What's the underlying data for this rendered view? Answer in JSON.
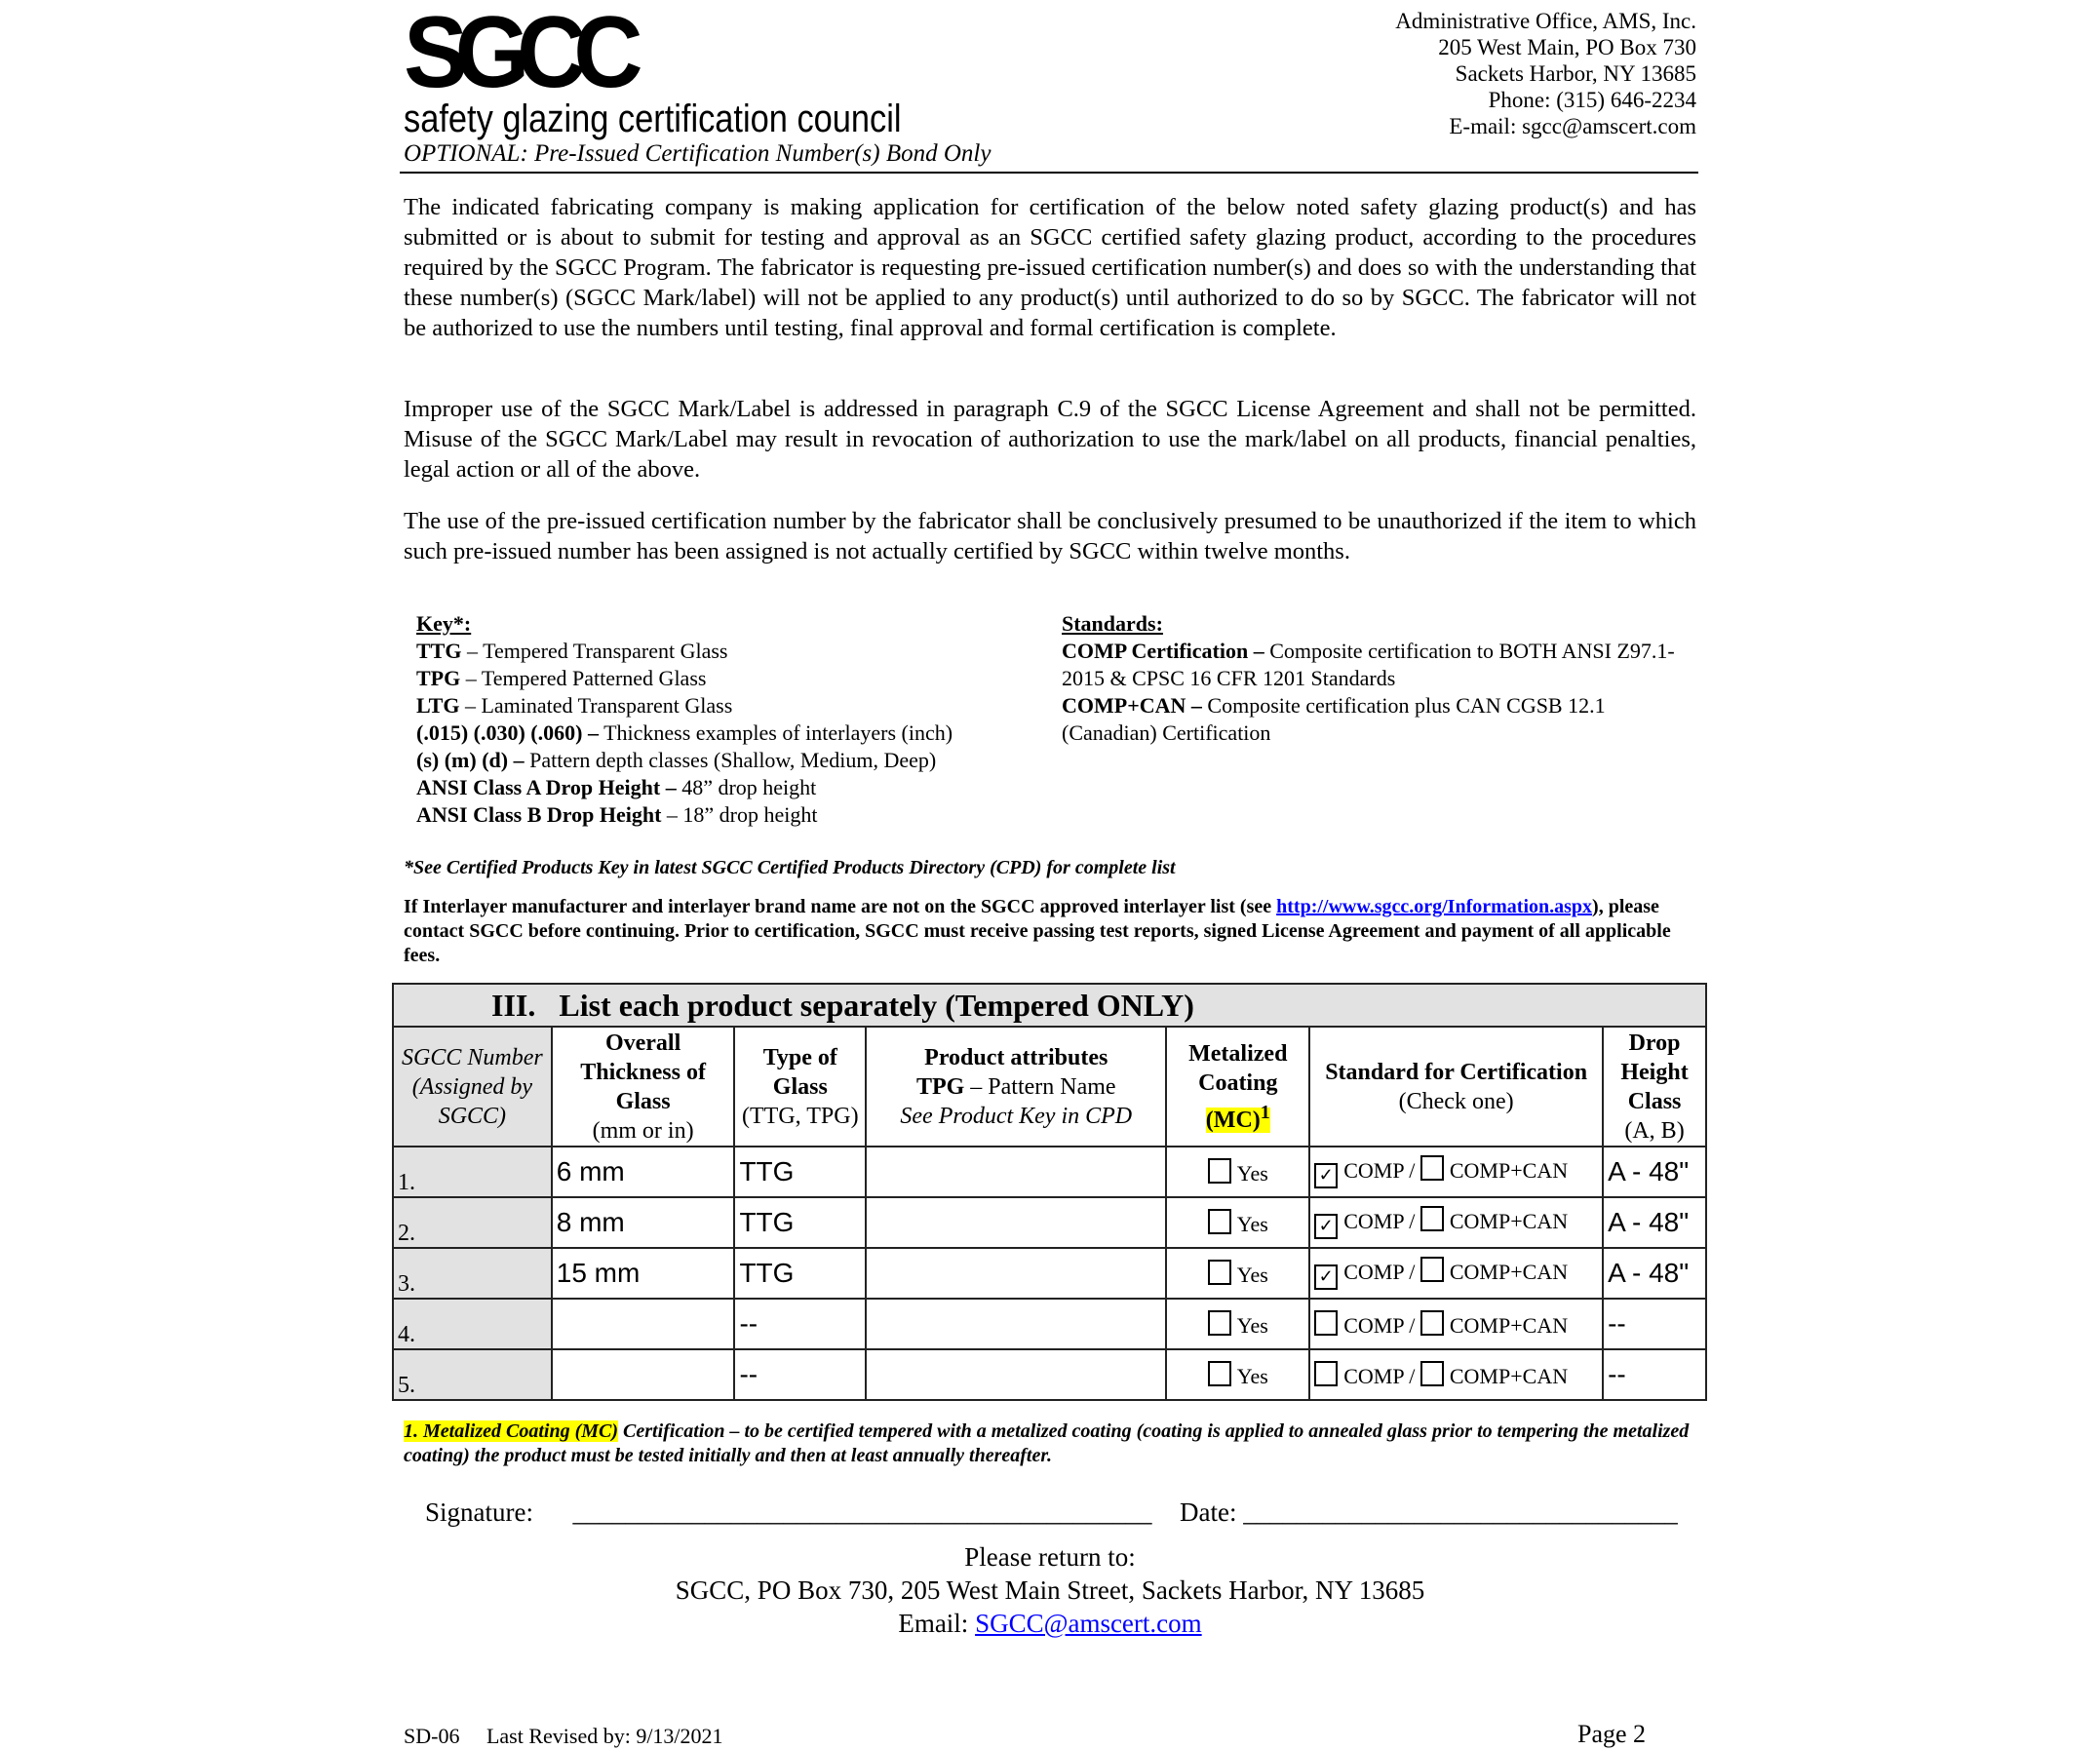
{
  "header": {
    "logo_mark": "SGCC",
    "logo_name": "safety glazing certification council",
    "subtitle": "OPTIONAL: Pre-Issued Certification Number(s) Bond Only",
    "address": [
      "Administrative Office, AMS, Inc.",
      "205 West Main, PO Box 730",
      "Sackets Harbor, NY 13685",
      "Phone: (315) 646-2234",
      "E-mail: sgcc@amscert.com"
    ]
  },
  "paragraphs": [
    "The indicated fabricating company is making application for certification of the below noted safety glazing product(s) and has submitted or is about to submit for testing and approval as an SGCC certified safety glazing product, according to the procedures required by the SGCC Program. The fabricator is requesting pre-issued certification number(s) and does so with the understanding that these number(s) (SGCC Mark/label) will not be applied to any product(s) until authorized to do so by SGCC. The fabricator will not be authorized to use the numbers until testing, final approval and formal certification is complete.",
    "Improper use of the SGCC Mark/Label is addressed in paragraph C.9 of the SGCC License Agreement and shall not be permitted. Misuse of the SGCC Mark/Label may result in revocation of authorization to use the mark/label on all products, financial penalties, legal action or all of the above.",
    "The use of the pre-issued certification number by the fabricator shall be conclusively presumed to be unauthorized if the item to which such pre-issued number has been assigned is not actually certified by SGCC within twelve months."
  ],
  "key": {
    "title": "Key*:",
    "items": [
      {
        "term": "TTG",
        "def": " – Tempered Transparent Glass"
      },
      {
        "term": "TPG",
        "def": " – Tempered Patterned Glass"
      },
      {
        "term": "LTG",
        "def": " – Laminated Transparent Glass"
      },
      {
        "term": "(.015) (.030) (.060) –",
        "def": " Thickness examples of interlayers (inch)"
      },
      {
        "term": "(s) (m) (d) –",
        "def": " Pattern depth classes (Shallow, Medium, Deep)"
      },
      {
        "term": "ANSI Class A Drop Height –",
        "def": " 48” drop height"
      },
      {
        "term": "ANSI Class B Drop Height",
        "def": " – 18” drop height"
      }
    ],
    "note": "*See Certified Products Key in latest SGCC Certified Products Directory (CPD) for complete list"
  },
  "standards": {
    "title": "Standards:",
    "items": [
      {
        "term": "COMP Certification –",
        "def": " Composite certification to BOTH ANSI Z97.1-2015 & CPSC 16 CFR 1201 Standards"
      },
      {
        "term": "COMP+CAN –",
        "def": " Composite certification plus CAN CGSB 12.1 (Canadian) Certification"
      }
    ]
  },
  "interlayer": {
    "pre": "If Interlayer manufacturer and interlayer brand name are not on the SGCC approved interlayer list (see ",
    "link": "http://www.sgcc.org/Information.aspx",
    "post": "), please contact SGCC before continuing. Prior to certification, SGCC must receive passing test reports, signed License Agreement and payment of all applicable fees."
  },
  "table": {
    "numeral": "III.",
    "title": "List each product separately (Tempered ONLY)",
    "headers": {
      "sgcc": "SGCC Number (Assigned by SGCC)",
      "thick_b": "Overall Thickness of Glass",
      "thick": "(mm or in)",
      "type_b": "Type of Glass",
      "type": "(TTG, TPG)",
      "attr_b": "Product attributes",
      "attr_tpg": "TPG",
      "attr_pn": " – Pattern Name",
      "attr_see": "See Product Key in CPD",
      "mc_b": "Metalized Coating",
      "mc_hl": "(MC)",
      "mc_sup": "1",
      "std_b": "Standard for Certification",
      "std": "(Check one)",
      "drop_b": "Drop Height Class",
      "drop": "(A, B)"
    },
    "yes": "Yes",
    "comp": "COMP",
    "slash": " / ",
    "compcan": "COMP+CAN",
    "check": "✓",
    "rows": [
      {
        "n": "1.",
        "thick": "6 mm",
        "type": "TTG",
        "comp": true,
        "drop": "A - 48\""
      },
      {
        "n": "2.",
        "thick": "8 mm",
        "type": "TTG",
        "comp": true,
        "drop": "A - 48\""
      },
      {
        "n": "3.",
        "thick": "15 mm",
        "type": "TTG",
        "comp": true,
        "drop": "A - 48\""
      },
      {
        "n": "4.",
        "thick": "",
        "type": "--",
        "comp": false,
        "drop": "--"
      },
      {
        "n": "5.",
        "thick": "",
        "type": "--",
        "comp": false,
        "drop": "--"
      }
    ]
  },
  "mc_note": {
    "hl": "1. Metalized Coating (MC)",
    "text": " Certification – to be certified tempered with a metalized coating (coating is applied to annealed glass prior to tempering the metalized coating) the product must be tested initially and then at least annually thereafter."
  },
  "signature": {
    "label": "Signature:",
    "line": "____________________________________________",
    "date_label": "Date:",
    "date_line": "_________________________________"
  },
  "return": {
    "l1": "Please return to:",
    "l2": "SGCC, PO Box 730, 205 West Main Street, Sackets Harbor, NY 13685",
    "email_label": "Email: ",
    "email": "SGCC@amscert.com"
  },
  "footer": {
    "code": "SD-06",
    "revised": "Last Revised by: 9/13/2021",
    "page": "Page 2"
  }
}
